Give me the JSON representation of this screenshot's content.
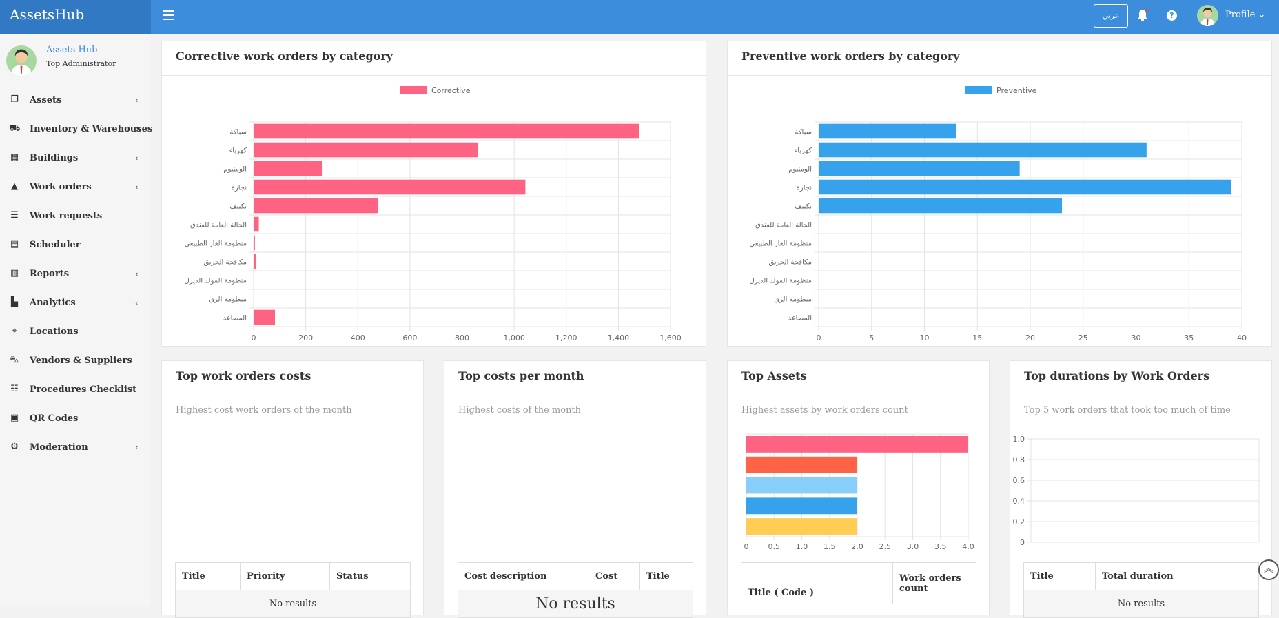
{
  "header": {
    "brand": "AssetsHub",
    "lang_button": "عربي",
    "profile_label": "Profile ⌄"
  },
  "sidebar": {
    "user_name": "Assets Hub",
    "user_role": "Top Administrator",
    "items": [
      {
        "label": "Assets",
        "icon": "copy-icon",
        "glyph": "❐",
        "chevron": "‹"
      },
      {
        "label": "Inventory & Warehouses",
        "icon": "truck-icon",
        "glyph": "⛟",
        "chevron": "×"
      },
      {
        "label": "Buildings",
        "icon": "buildings-icon",
        "glyph": "▦",
        "chevron": "‹"
      },
      {
        "label": "Work orders",
        "icon": "warning-icon",
        "glyph": "▲",
        "chevron": "‹"
      },
      {
        "label": "Work requests",
        "icon": "list-icon",
        "glyph": "☰",
        "chevron": ""
      },
      {
        "label": "Scheduler",
        "icon": "calendar-icon",
        "glyph": "▤",
        "chevron": ""
      },
      {
        "label": "Reports",
        "icon": "report-icon",
        "glyph": "▥",
        "chevron": "‹"
      },
      {
        "label": "Analytics",
        "icon": "chart-icon",
        "glyph": "▙",
        "chevron": "‹"
      },
      {
        "label": "Locations",
        "icon": "map-marker-icon",
        "glyph": "⌖",
        "chevron": ""
      },
      {
        "label": "Vendors & Suppliers",
        "icon": "cart-icon",
        "glyph": "⛍",
        "chevron": ""
      },
      {
        "label": "Procedures Checklist",
        "icon": "checklist-icon",
        "glyph": "☷",
        "chevron": ""
      },
      {
        "label": "QR Codes",
        "icon": "qrcode-icon",
        "glyph": "▣",
        "chevron": ""
      },
      {
        "label": "Moderation",
        "icon": "gears-icon",
        "glyph": "⚙",
        "chevron": "‹"
      }
    ]
  },
  "panels": {
    "corrective": {
      "title": "Corrective work orders by category"
    },
    "preventive": {
      "title": "Preventive work orders by category"
    },
    "top_costs": {
      "title": "Top work orders costs",
      "subtitle": "Highest cost work orders of the month",
      "columns": [
        "Title",
        "Priority",
        "Status"
      ],
      "empty": "No results"
    },
    "costs_month": {
      "title": "Top costs per month",
      "subtitle": "Highest costs of the month",
      "columns": [
        "Cost description",
        "Cost",
        "Title"
      ],
      "empty": "No results"
    },
    "top_assets": {
      "title": "Top Assets",
      "subtitle": "Highest assets by work orders count",
      "columns": [
        "Title ( Code )",
        "Work orders count"
      ]
    },
    "durations": {
      "title": "Top durations by Work Orders",
      "subtitle": "Top 5 work orders that took too much of time",
      "columns": [
        "Title",
        "Total duration"
      ],
      "empty": "No results"
    }
  },
  "chart_data": [
    {
      "type": "bar",
      "orientation": "horizontal",
      "categories": [
        "سباكة",
        "كهرباء",
        "الومنيوم",
        "نجارة",
        "تكييف",
        "الحالة العامة للفندق",
        "منظومة الغاز الطبيعي",
        "مكافحة الحريق",
        "منظومة المولد الديزل",
        "منظومة الري",
        "المصاعد"
      ],
      "series": [
        {
          "name": "Corrective",
          "values": [
            1480,
            860,
            262,
            1043,
            477,
            20,
            5,
            8,
            0,
            0,
            82
          ],
          "color": "#ff6384"
        }
      ],
      "xlim": [
        0,
        1600
      ],
      "xticks": [
        "0",
        "200",
        "400",
        "600",
        "800",
        "1,000",
        "1,200",
        "1,400",
        "1,600"
      ],
      "grid": true,
      "legend_position": "top"
    },
    {
      "type": "bar",
      "orientation": "horizontal",
      "categories": [
        "سباكة",
        "كهرباء",
        "الومنيوم",
        "نجارة",
        "تكييف",
        "الحالة العامة للفندق",
        "منظومة الغاز الطبيعي",
        "مكافحة الحريق",
        "منظومة المولد الديزل",
        "منظومة الري",
        "المصاعد"
      ],
      "series": [
        {
          "name": "Preventive",
          "values": [
            13,
            31,
            19,
            39,
            23,
            0,
            0,
            0,
            0,
            0,
            0
          ],
          "color": "#36a2eb"
        }
      ],
      "xlim": [
        0,
        40
      ],
      "xticks": [
        "0",
        "5",
        "10",
        "15",
        "20",
        "25",
        "30",
        "35",
        "40"
      ],
      "grid": true,
      "legend_position": "top"
    },
    {
      "type": "bar",
      "orientation": "horizontal",
      "categories": [
        "",
        "",
        "",
        "",
        ""
      ],
      "values": [
        4,
        2,
        2,
        2,
        2
      ],
      "colors": [
        "#ff6384",
        "#ff6347",
        "#87cefa",
        "#36a2eb",
        "#ffcd56"
      ],
      "xlim": [
        0,
        4
      ],
      "xticks": [
        "0",
        "0.5",
        "1.0",
        "1.5",
        "2.0",
        "2.5",
        "3.0",
        "3.5",
        "4.0"
      ],
      "grid": true
    },
    {
      "type": "line",
      "values": [],
      "ylim": [
        0,
        1
      ],
      "yticks": [
        "1.0",
        "0.8",
        "0.6",
        "0.4",
        "0.2",
        "0"
      ],
      "grid": true
    }
  ]
}
